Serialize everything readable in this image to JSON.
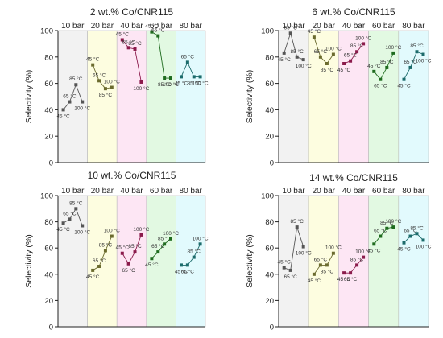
{
  "chart_data": [
    {
      "type": "line",
      "title": "2 wt.% Co/CNR115",
      "ylabel": "Selectivity (%)",
      "ylim": [
        0,
        100
      ],
      "yticks": [
        0,
        20,
        40,
        60,
        80,
        100
      ],
      "grid": false,
      "pressure_bands": [
        {
          "label": "10 bar",
          "color": "#f2f2f2"
        },
        {
          "label": "20 bar",
          "color": "#fdfde0"
        },
        {
          "label": "40 bar",
          "color": "#fde6f4"
        },
        {
          "label": "60 bar",
          "color": "#e2f9e2"
        },
        {
          "label": "80 bar",
          "color": "#e2fafd"
        }
      ],
      "temperature_labels": [
        "45 °C",
        "65 °C",
        "85 °C",
        "100 °C"
      ],
      "series": [
        {
          "values": [
            40,
            46,
            59,
            46
          ],
          "color": "#555555"
        },
        {
          "values": [
            74,
            62,
            56,
            57
          ],
          "color": "#6b6b2e"
        },
        {
          "values": [
            93,
            87,
            86,
            61
          ],
          "color": "#8b1a4b"
        },
        {
          "values": [
            99,
            96,
            64,
            64
          ],
          "color": "#1e6b1e"
        },
        {
          "values": [
            65,
            76,
            65,
            65
          ],
          "color": "#1b6b6b"
        }
      ]
    },
    {
      "type": "line",
      "title": "6 wt.% Co/CNR115",
      "ylabel": "Selectivity (%)",
      "ylim": [
        0,
        100
      ],
      "yticks": [
        0,
        20,
        40,
        60,
        80,
        100
      ],
      "grid": false,
      "pressure_bands": [
        {
          "label": "10 bar",
          "color": "#f2f2f2"
        },
        {
          "label": "20 bar",
          "color": "#fdfde0"
        },
        {
          "label": "40 bar",
          "color": "#fde6f4"
        },
        {
          "label": "60 bar",
          "color": "#e2f9e2"
        },
        {
          "label": "80 bar",
          "color": "#e2fafd"
        }
      ],
      "temperature_labels": [
        "45 °C",
        "65 °C",
        "85 °C",
        "100 °C"
      ],
      "series": [
        {
          "values": [
            83,
            98,
            80,
            78
          ],
          "color": "#555555"
        },
        {
          "values": [
            95,
            80,
            75,
            82
          ],
          "color": "#6b6b2e"
        },
        {
          "values": [
            75,
            77,
            84,
            90
          ],
          "color": "#8b1a4b"
        },
        {
          "values": [
            69,
            63,
            72,
            83
          ],
          "color": "#1e6b1e"
        },
        {
          "values": [
            63,
            72,
            84,
            82
          ],
          "color": "#1b6b6b"
        }
      ]
    },
    {
      "type": "line",
      "title": "10 wt.% Co/CNR115",
      "ylabel": "Selectivity (%)",
      "ylim": [
        0,
        100
      ],
      "yticks": [
        0,
        20,
        40,
        60,
        80,
        100
      ],
      "grid": false,
      "pressure_bands": [
        {
          "label": "10 bar",
          "color": "#f2f2f2"
        },
        {
          "label": "20 bar",
          "color": "#fdfde0"
        },
        {
          "label": "40 bar",
          "color": "#fde6f4"
        },
        {
          "label": "60 bar",
          "color": "#e2f9e2"
        },
        {
          "label": "80 bar",
          "color": "#e2fafd"
        }
      ],
      "temperature_labels": [
        "45 °C",
        "65 °C",
        "85 °C",
        "100 °C"
      ],
      "series": [
        {
          "values": [
            79,
            82,
            90,
            77
          ],
          "color": "#555555"
        },
        {
          "values": [
            43,
            46,
            58,
            69
          ],
          "color": "#6b6b2e"
        },
        {
          "values": [
            56,
            48,
            57,
            70
          ],
          "color": "#8b1a4b"
        },
        {
          "values": [
            52,
            57,
            63,
            67
          ],
          "color": "#1e6b1e"
        },
        {
          "values": [
            47,
            47,
            53,
            63
          ],
          "color": "#1b6b6b"
        }
      ]
    },
    {
      "type": "line",
      "title": "14 wt.% Co/CNR115",
      "ylabel": "Selectivity (%)",
      "ylim": [
        0,
        100
      ],
      "yticks": [
        0,
        20,
        40,
        60,
        80,
        100
      ],
      "grid": false,
      "pressure_bands": [
        {
          "label": "10 bar",
          "color": "#f2f2f2"
        },
        {
          "label": "20 bar",
          "color": "#fdfde0"
        },
        {
          "label": "40 bar",
          "color": "#fde6f4"
        },
        {
          "label": "60 bar",
          "color": "#e2f9e2"
        },
        {
          "label": "80 bar",
          "color": "#e2fafd"
        }
      ],
      "temperature_labels": [
        "45 °C",
        "65 °C",
        "85 °C",
        "100 °C"
      ],
      "series": [
        {
          "values": [
            45,
            43,
            76,
            61
          ],
          "color": "#555555"
        },
        {
          "values": [
            40,
            47,
            47,
            56
          ],
          "color": "#6b6b2e"
        },
        {
          "values": [
            41,
            41,
            47,
            53
          ],
          "color": "#8b1a4b"
        },
        {
          "values": [
            63,
            69,
            75,
            76
          ],
          "color": "#1e6b1e"
        },
        {
          "values": [
            64,
            69,
            71,
            66
          ],
          "color": "#1b6b6b"
        }
      ]
    }
  ]
}
